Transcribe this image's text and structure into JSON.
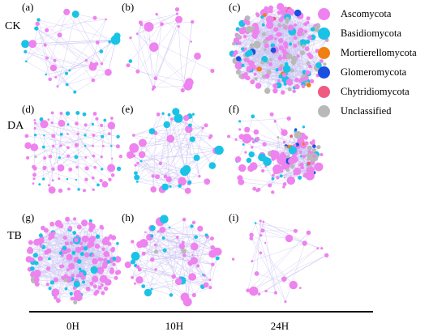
{
  "colors": {
    "Ascomycota": "#ee82ee",
    "Basidiomycota": "#19c3e6",
    "Mortierellomycota": "#f07f12",
    "Glomeromycota": "#1b4fe0",
    "Chytridiomycota": "#ef5a82",
    "Unclassified": "#b9b9b9",
    "edge": "#c8c2f2"
  },
  "legend": [
    {
      "key": "Ascomycota",
      "label": "Ascomycota"
    },
    {
      "key": "Basidiomycota",
      "label": "Basidiomycota"
    },
    {
      "key": "Mortierellomycota",
      "label": "Mortierellomycota"
    },
    {
      "key": "Glomeromycota",
      "label": "Glomeromycota"
    },
    {
      "key": "Chytridiomycota",
      "label": "Chytridiomycota"
    },
    {
      "key": "Unclassified",
      "label": "Unclassified"
    }
  ],
  "row_labels": [
    "CK",
    "DA",
    "TB"
  ],
  "col_labels": [
    "0H",
    "10H",
    "24H"
  ],
  "panels": [
    {
      "letter": "(a)",
      "nodes": 40,
      "edges": 60,
      "style": "ring",
      "big": 0.18,
      "mix": {
        "Ascomycota": 0.6,
        "Basidiomycota": 0.4
      }
    },
    {
      "letter": "(b)",
      "nodes": 26,
      "edges": 40,
      "style": "ring",
      "big": 0.2,
      "mix": {
        "Ascomycota": 0.95,
        "Basidiomycota": 0.05
      }
    },
    {
      "letter": "(c)",
      "nodes": 240,
      "edges": 700,
      "style": "dense",
      "big": 0.3,
      "mix": {
        "Ascomycota": 0.6,
        "Basidiomycota": 0.12,
        "Unclassified": 0.22,
        "Glomeromycota": 0.03,
        "Mortierellomycota": 0.02,
        "Chytridiomycota": 0.01
      }
    },
    {
      "letter": "(d)",
      "nodes": 95,
      "edges": 60,
      "style": "grid",
      "big": 0.08,
      "mix": {
        "Ascomycota": 0.72,
        "Basidiomycota": 0.26,
        "Unclassified": 0.02
      }
    },
    {
      "letter": "(e)",
      "nodes": 55,
      "edges": 110,
      "style": "ring",
      "big": 0.4,
      "mix": {
        "Ascomycota": 0.6,
        "Basidiomycota": 0.4
      }
    },
    {
      "letter": "(f)",
      "nodes": 150,
      "edges": 260,
      "style": "cluster",
      "big": 0.35,
      "mix": {
        "Ascomycota": 0.5,
        "Basidiomycota": 0.12,
        "Unclassified": 0.18,
        "Glomeromycota": 0.12,
        "Mortierellomycota": 0.04,
        "Chytridiomycota": 0.04
      }
    },
    {
      "letter": "(g)",
      "nodes": 170,
      "edges": 500,
      "style": "dense",
      "big": 0.25,
      "mix": {
        "Ascomycota": 0.78,
        "Basidiomycota": 0.2,
        "Unclassified": 0.02
      }
    },
    {
      "letter": "(h)",
      "nodes": 75,
      "edges": 150,
      "style": "ring",
      "big": 0.4,
      "mix": {
        "Ascomycota": 0.72,
        "Basidiomycota": 0.26,
        "Unclassified": 0.02
      }
    },
    {
      "letter": "(i)",
      "nodes": 28,
      "edges": 35,
      "style": "ring",
      "big": 0.25,
      "mix": {
        "Ascomycota": 0.93,
        "Basidiomycota": 0.04,
        "Unclassified": 0.03
      }
    }
  ]
}
